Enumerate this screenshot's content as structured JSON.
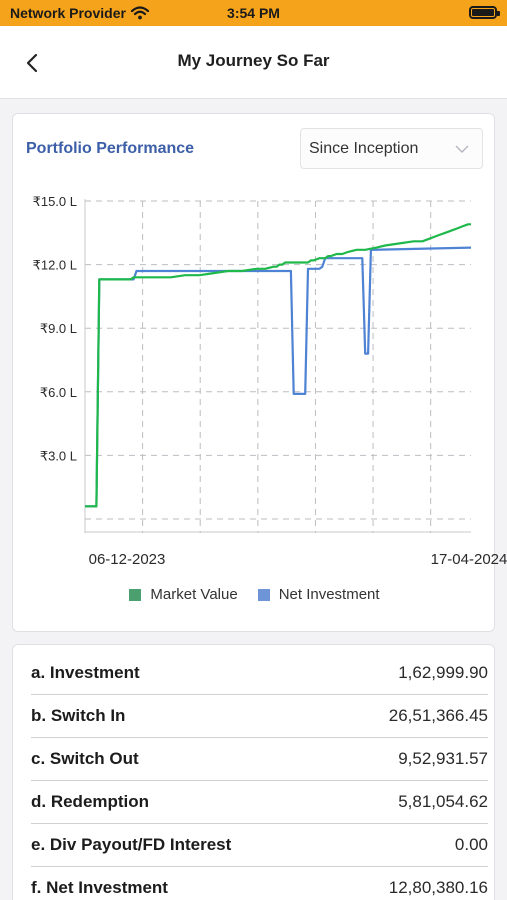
{
  "status_bar": {
    "carrier": "Network Provider",
    "time": "3:54 PM"
  },
  "header": {
    "title": "My Journey So Far"
  },
  "card": {
    "title": "Portfolio Performance",
    "period": "Since Inception"
  },
  "chart_data": {
    "type": "line",
    "x_start": "06-12-2023",
    "x_end": "17-04-2024",
    "ylim": [
      0,
      15
    ],
    "y_ticks": [
      "₹3.0 L",
      "₹6.0 L",
      "₹9.0 L",
      "₹12.0 L",
      "₹15.0 L"
    ],
    "x_ticks": [
      "06-12-2023",
      "17-04-2024"
    ],
    "grid": true,
    "legend_position": "bottom",
    "series": [
      {
        "name": "Market Value",
        "color": "#1fb84b",
        "x": [
          0,
          4,
          5,
          16,
          17,
          18,
          23,
          25,
          30,
          35,
          40,
          45,
          50,
          55,
          60,
          63,
          66,
          67,
          68,
          69,
          70,
          71,
          72,
          75,
          77,
          78,
          79,
          80,
          82,
          84,
          85,
          86,
          88,
          89,
          90,
          92,
          95,
          98,
          102,
          105,
          110,
          115,
          118,
          120,
          122,
          124,
          126,
          128,
          130,
          132,
          134,
          135
        ],
        "y": [
          0.6,
          0.6,
          11.3,
          11.3,
          11.4,
          11.4,
          11.4,
          11.4,
          11.4,
          11.5,
          11.5,
          11.6,
          11.7,
          11.7,
          11.8,
          11.8,
          11.9,
          11.9,
          12.0,
          12.0,
          12.1,
          12.1,
          12.1,
          12.1,
          12.1,
          12.1,
          12.2,
          12.2,
          12.3,
          12.3,
          12.4,
          12.4,
          12.5,
          12.5,
          12.5,
          12.6,
          12.7,
          12.7,
          12.8,
          12.9,
          13.0,
          13.1,
          13.1,
          13.2,
          13.3,
          13.4,
          13.5,
          13.6,
          13.7,
          13.8,
          13.9,
          13.9
        ]
      },
      {
        "name": "Net Investment",
        "color": "#4e82d4",
        "x": [
          0,
          4,
          5,
          16,
          17,
          18,
          70,
          72,
          73,
          76,
          77,
          78,
          82,
          83,
          84,
          96,
          97,
          98,
          99,
          100,
          101,
          135
        ],
        "y": [
          0.6,
          0.6,
          11.3,
          11.3,
          11.3,
          11.7,
          11.7,
          11.7,
          5.9,
          5.9,
          5.9,
          11.8,
          11.8,
          11.9,
          12.3,
          12.3,
          12.3,
          7.8,
          7.8,
          12.7,
          12.7,
          12.8
        ]
      }
    ]
  },
  "legend": {
    "market": "Market Value",
    "net": "Net Investment"
  },
  "summary": [
    {
      "label": "a. Investment",
      "value": "1,62,999.90"
    },
    {
      "label": "b. Switch In",
      "value": "26,51,366.45"
    },
    {
      "label": "c. Switch Out",
      "value": "9,52,931.57"
    },
    {
      "label": "d. Redemption",
      "value": "5,81,054.62"
    },
    {
      "label": "e. Div Payout/FD Interest",
      "value": "0.00"
    },
    {
      "label": "f. Net Investment",
      "value": "12,80,380.16"
    }
  ]
}
